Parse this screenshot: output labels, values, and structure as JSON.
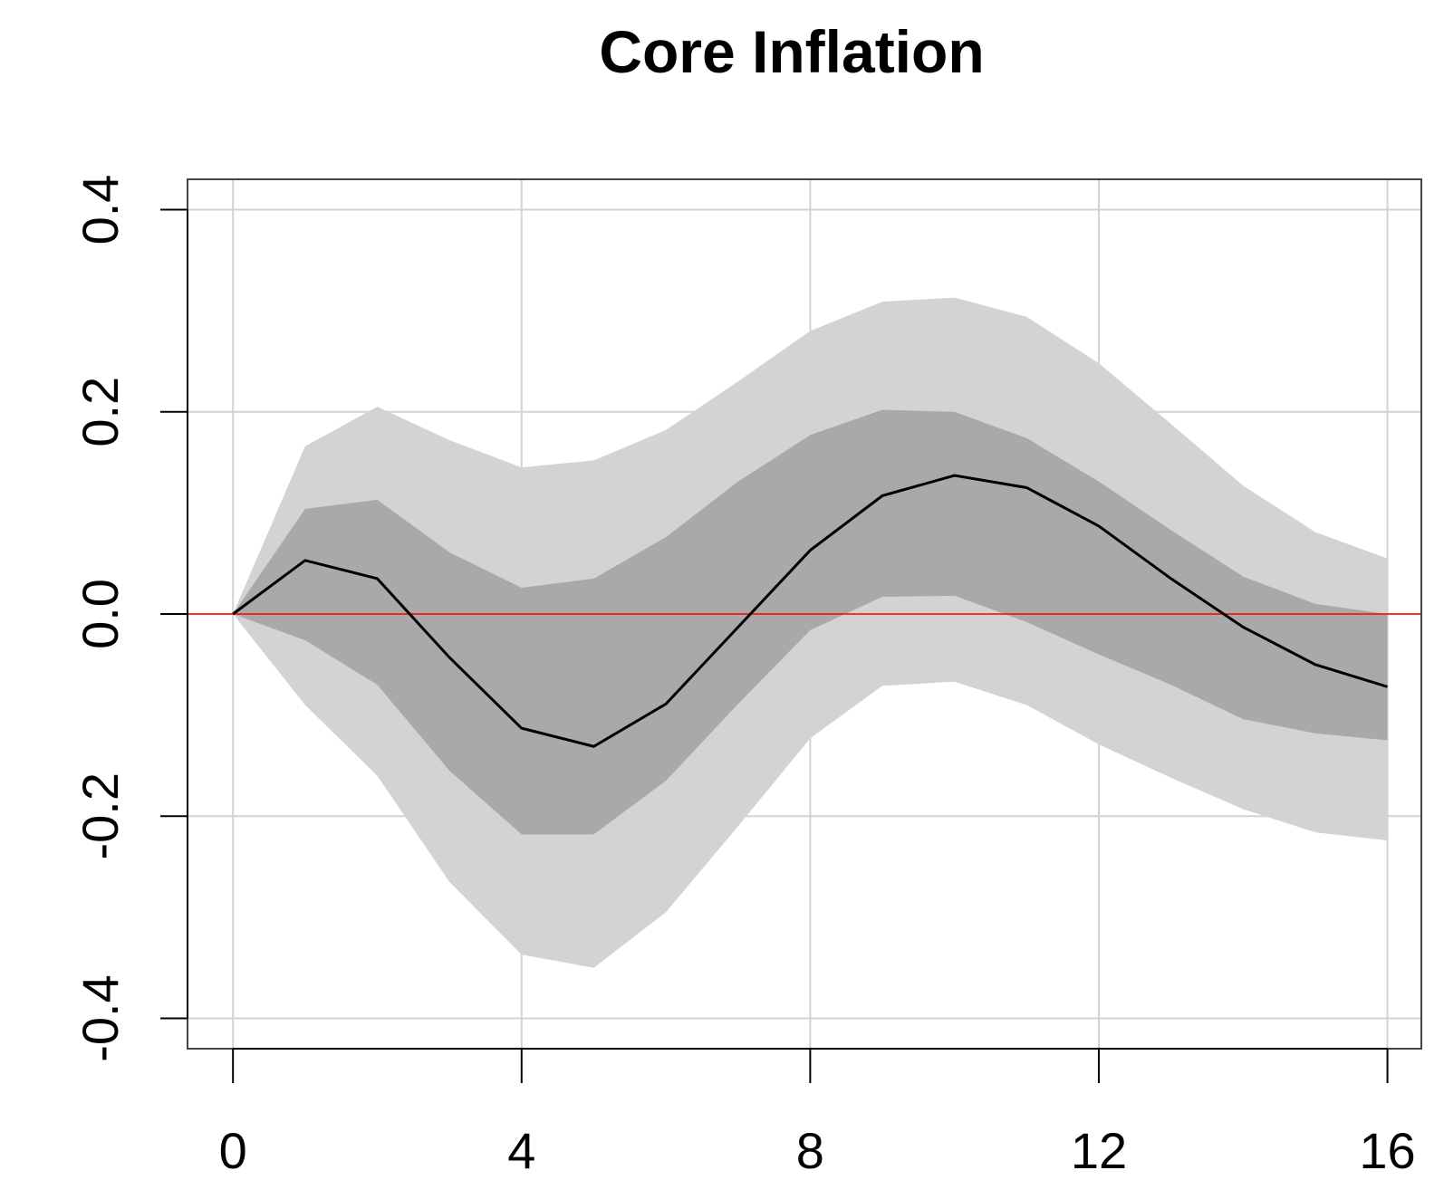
{
  "chart_data": {
    "type": "area",
    "title": "Core Inflation",
    "xlabel": "",
    "ylabel": "",
    "xlim": [
      -0.63,
      16.47
    ],
    "ylim": [
      -0.43,
      0.43
    ],
    "x": [
      0,
      1,
      2,
      3,
      4,
      5,
      6,
      7,
      8,
      9,
      10,
      11,
      12,
      13,
      14,
      15,
      16
    ],
    "x_ticks": [
      0,
      4,
      8,
      12,
      16
    ],
    "y_ticks": [
      -0.4,
      -0.2,
      0.0,
      0.2,
      0.4
    ],
    "y_tick_labels": [
      "-0.4",
      "-0.2",
      "0.0",
      "0.2",
      "0.4"
    ],
    "grid": true,
    "reference_line": {
      "y": 0.0,
      "color": "#ff0000"
    },
    "series": [
      {
        "role": "median",
        "color": "#000000",
        "values": [
          0.0,
          0.053,
          0.035,
          -0.043,
          -0.113,
          -0.131,
          -0.089,
          -0.013,
          0.063,
          0.117,
          0.137,
          0.125,
          0.087,
          0.035,
          -0.013,
          -0.05,
          -0.072
        ]
      }
    ],
    "bands": [
      {
        "role": "outer",
        "color": "#d3d3d3",
        "lower": [
          0.0,
          -0.09,
          -0.16,
          -0.265,
          -0.337,
          -0.35,
          -0.295,
          -0.21,
          -0.123,
          -0.071,
          -0.067,
          -0.09,
          -0.129,
          -0.162,
          -0.193,
          -0.216,
          -0.224
        ],
        "upper": [
          0.0,
          0.166,
          0.205,
          0.172,
          0.145,
          0.152,
          0.182,
          0.23,
          0.28,
          0.309,
          0.313,
          0.294,
          0.248,
          0.188,
          0.127,
          0.081,
          0.055
        ]
      },
      {
        "role": "inner",
        "color": "#a9a9a9",
        "lower": [
          0.0,
          -0.026,
          -0.07,
          -0.155,
          -0.218,
          -0.218,
          -0.165,
          -0.089,
          -0.016,
          0.017,
          0.018,
          -0.008,
          -0.04,
          -0.07,
          -0.104,
          -0.118,
          -0.125
        ],
        "upper": [
          0.0,
          0.104,
          0.113,
          0.061,
          0.026,
          0.035,
          0.076,
          0.131,
          0.177,
          0.202,
          0.2,
          0.174,
          0.131,
          0.083,
          0.037,
          0.01,
          0.0
        ]
      }
    ]
  }
}
